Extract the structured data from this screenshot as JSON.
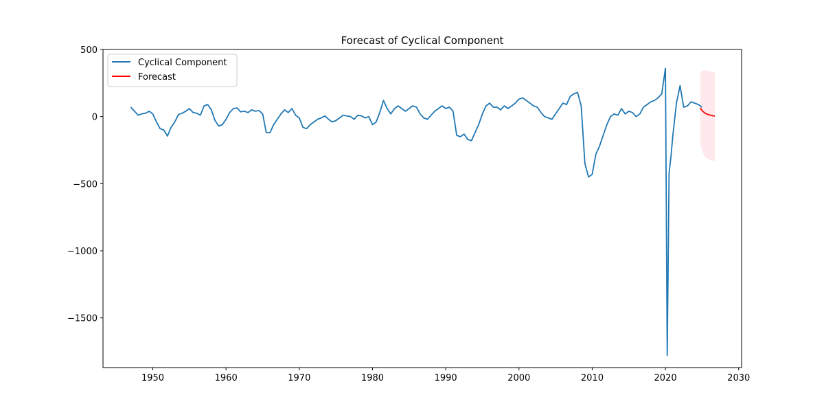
{
  "chart_data": {
    "type": "line",
    "title": "Forecast of Cyclical Component",
    "xlabel": "",
    "ylabel": "",
    "xlim": [
      1943.2,
      2030.4
    ],
    "ylim": [
      -1870,
      500
    ],
    "x_ticks": [
      1950,
      1960,
      1970,
      1980,
      1990,
      2000,
      2010,
      2020,
      2030
    ],
    "y_ticks": [
      500,
      0,
      -500,
      -1000,
      -1500
    ],
    "grid": false,
    "legend_position": "top-left",
    "series": [
      {
        "name": "Cyclical Component",
        "color": "#1f77b4",
        "points": [
          [
            1947.0,
            70
          ],
          [
            1947.5,
            40
          ],
          [
            1948.0,
            10
          ],
          [
            1948.5,
            20
          ],
          [
            1949.0,
            25
          ],
          [
            1949.5,
            40
          ],
          [
            1950.0,
            20
          ],
          [
            1950.5,
            -40
          ],
          [
            1951.0,
            -90
          ],
          [
            1951.5,
            -100
          ],
          [
            1952.0,
            -145
          ],
          [
            1952.5,
            -80
          ],
          [
            1953.0,
            -40
          ],
          [
            1953.5,
            15
          ],
          [
            1954.0,
            25
          ],
          [
            1954.5,
            40
          ],
          [
            1955.0,
            60
          ],
          [
            1955.5,
            30
          ],
          [
            1956.0,
            25
          ],
          [
            1956.5,
            10
          ],
          [
            1957.0,
            80
          ],
          [
            1957.5,
            90
          ],
          [
            1958.0,
            50
          ],
          [
            1958.5,
            -30
          ],
          [
            1959.0,
            -70
          ],
          [
            1959.5,
            -60
          ],
          [
            1960.0,
            -20
          ],
          [
            1960.5,
            30
          ],
          [
            1961.0,
            60
          ],
          [
            1961.5,
            65
          ],
          [
            1962.0,
            35
          ],
          [
            1962.5,
            40
          ],
          [
            1963.0,
            30
          ],
          [
            1963.5,
            50
          ],
          [
            1964.0,
            40
          ],
          [
            1964.5,
            45
          ],
          [
            1965.0,
            20
          ],
          [
            1965.5,
            -120
          ],
          [
            1966.0,
            -120
          ],
          [
            1966.5,
            -60
          ],
          [
            1967.0,
            -20
          ],
          [
            1967.5,
            20
          ],
          [
            1968.0,
            50
          ],
          [
            1968.5,
            30
          ],
          [
            1969.0,
            60
          ],
          [
            1969.5,
            10
          ],
          [
            1970.0,
            -10
          ],
          [
            1970.5,
            -80
          ],
          [
            1971.0,
            -90
          ],
          [
            1971.5,
            -60
          ],
          [
            1972.0,
            -40
          ],
          [
            1972.5,
            -20
          ],
          [
            1973.0,
            -10
          ],
          [
            1973.5,
            5
          ],
          [
            1974.0,
            -20
          ],
          [
            1974.5,
            -40
          ],
          [
            1975.0,
            -30
          ],
          [
            1975.5,
            -10
          ],
          [
            1976.0,
            10
          ],
          [
            1976.5,
            5
          ],
          [
            1977.0,
            0
          ],
          [
            1977.5,
            -20
          ],
          [
            1978.0,
            10
          ],
          [
            1978.5,
            5
          ],
          [
            1979.0,
            -10
          ],
          [
            1979.5,
            0
          ],
          [
            1980.0,
            -60
          ],
          [
            1980.5,
            -40
          ],
          [
            1981.0,
            30
          ],
          [
            1981.5,
            120
          ],
          [
            1982.0,
            60
          ],
          [
            1982.5,
            20
          ],
          [
            1983.0,
            60
          ],
          [
            1983.5,
            80
          ],
          [
            1984.0,
            60
          ],
          [
            1984.5,
            40
          ],
          [
            1985.0,
            60
          ],
          [
            1985.5,
            80
          ],
          [
            1986.0,
            70
          ],
          [
            1986.5,
            20
          ],
          [
            1987.0,
            -10
          ],
          [
            1987.5,
            -20
          ],
          [
            1988.0,
            10
          ],
          [
            1988.5,
            40
          ],
          [
            1989.0,
            60
          ],
          [
            1989.5,
            80
          ],
          [
            1990.0,
            60
          ],
          [
            1990.5,
            70
          ],
          [
            1991.0,
            40
          ],
          [
            1991.5,
            -140
          ],
          [
            1992.0,
            -150
          ],
          [
            1992.5,
            -130
          ],
          [
            1993.0,
            -170
          ],
          [
            1993.5,
            -180
          ],
          [
            1994.0,
            -120
          ],
          [
            1994.5,
            -60
          ],
          [
            1995.0,
            20
          ],
          [
            1995.5,
            80
          ],
          [
            1996.0,
            100
          ],
          [
            1996.5,
            70
          ],
          [
            1997.0,
            70
          ],
          [
            1997.5,
            50
          ],
          [
            1998.0,
            80
          ],
          [
            1998.5,
            60
          ],
          [
            1999.0,
            80
          ],
          [
            1999.5,
            100
          ],
          [
            2000.0,
            130
          ],
          [
            2000.5,
            140
          ],
          [
            2001.0,
            120
          ],
          [
            2001.5,
            100
          ],
          [
            2002.0,
            80
          ],
          [
            2002.5,
            70
          ],
          [
            2003.0,
            30
          ],
          [
            2003.5,
            0
          ],
          [
            2004.0,
            -10
          ],
          [
            2004.5,
            -20
          ],
          [
            2005.0,
            20
          ],
          [
            2005.5,
            60
          ],
          [
            2006.0,
            100
          ],
          [
            2006.5,
            90
          ],
          [
            2007.0,
            150
          ],
          [
            2007.5,
            170
          ],
          [
            2008.0,
            180
          ],
          [
            2008.5,
            80
          ],
          [
            2009.0,
            -350
          ],
          [
            2009.5,
            -450
          ],
          [
            2010.0,
            -430
          ],
          [
            2010.5,
            -280
          ],
          [
            2011.0,
            -220
          ],
          [
            2011.5,
            -140
          ],
          [
            2012.0,
            -60
          ],
          [
            2012.5,
            0
          ],
          [
            2013.0,
            20
          ],
          [
            2013.5,
            10
          ],
          [
            2014.0,
            60
          ],
          [
            2014.5,
            20
          ],
          [
            2015.0,
            40
          ],
          [
            2015.5,
            30
          ],
          [
            2016.0,
            0
          ],
          [
            2016.5,
            20
          ],
          [
            2017.0,
            70
          ],
          [
            2017.5,
            90
          ],
          [
            2018.0,
            110
          ],
          [
            2018.5,
            120
          ],
          [
            2019.0,
            140
          ],
          [
            2019.5,
            170
          ],
          [
            2020.0,
            360
          ],
          [
            2020.25,
            -1780
          ],
          [
            2020.5,
            -420
          ],
          [
            2020.75,
            -300
          ],
          [
            2021.0,
            -150
          ],
          [
            2021.5,
            100
          ],
          [
            2022.0,
            230
          ],
          [
            2022.5,
            70
          ],
          [
            2023.0,
            80
          ],
          [
            2023.5,
            110
          ],
          [
            2024.0,
            100
          ],
          [
            2024.5,
            90
          ],
          [
            2025.0,
            70
          ]
        ]
      },
      {
        "name": "Forecast",
        "color": "#ff0000",
        "band_color": "#ffc0cb",
        "points": [
          [
            2024.75,
            65
          ],
          [
            2025.0,
            45
          ],
          [
            2025.25,
            32
          ],
          [
            2025.5,
            23
          ],
          [
            2025.75,
            17
          ],
          [
            2026.0,
            12
          ],
          [
            2026.25,
            9
          ],
          [
            2026.5,
            6
          ],
          [
            2026.75,
            4
          ]
        ],
        "band": [
          [
            2024.75,
            -200,
            330
          ],
          [
            2025.0,
            -255,
            340
          ],
          [
            2025.25,
            -290,
            345
          ],
          [
            2025.5,
            -305,
            345
          ],
          [
            2025.75,
            -315,
            340
          ],
          [
            2026.0,
            -320,
            338
          ],
          [
            2026.25,
            -325,
            335
          ],
          [
            2026.5,
            -328,
            333
          ],
          [
            2026.75,
            -330,
            330
          ]
        ]
      }
    ]
  }
}
